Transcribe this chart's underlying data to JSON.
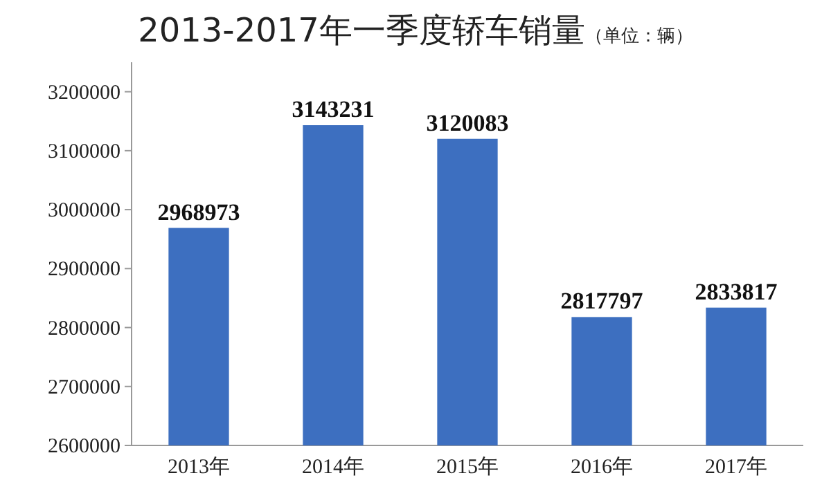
{
  "chart_data": {
    "type": "bar",
    "title": "2013-2017年一季度轿车销量",
    "subtitle": "（单位：辆）",
    "categories": [
      "2013年",
      "2014年",
      "2015年",
      "2016年",
      "2017年"
    ],
    "values": [
      2968973,
      3143231,
      3120083,
      2817797,
      2833817
    ],
    "color": "#3d6fc0",
    "ylim": [
      2600000,
      3250000
    ],
    "yticks": [
      2600000,
      2700000,
      2800000,
      2900000,
      3000000,
      3100000,
      3200000
    ],
    "data_labels": true
  }
}
